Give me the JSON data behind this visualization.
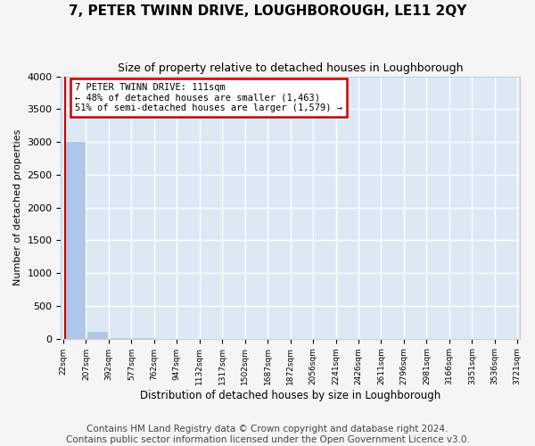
{
  "title": "7, PETER TWINN DRIVE, LOUGHBOROUGH, LE11 2QY",
  "subtitle": "Size of property relative to detached houses in Loughborough",
  "xlabel": "Distribution of detached houses by size in Loughborough",
  "ylabel": "Number of detached properties",
  "bar_color": "#aec6e8",
  "bar_edge_color": "#aec6e8",
  "background_color": "#dce9f5",
  "grid_color": "#ffffff",
  "annotation_line1": "7 PETER TWINN DRIVE: 111sqm",
  "annotation_line2": "← 48% of detached houses are smaller (1,463)",
  "annotation_line3": "51% of semi-detached houses are larger (1,579) →",
  "annotation_box_color": "#ffffff",
  "annotation_box_border": "#cc0000",
  "vline_color": "#cc0000",
  "bar_values": [
    3000,
    110,
    5,
    2,
    1,
    1,
    0,
    0,
    0,
    0,
    0,
    0,
    0,
    0,
    0,
    0,
    0,
    0,
    0,
    0
  ],
  "bin_labels": [
    "22sqm",
    "207sqm",
    "392sqm",
    "577sqm",
    "762sqm",
    "947sqm",
    "1132sqm",
    "1317sqm",
    "1502sqm",
    "1687sqm",
    "1872sqm",
    "2056sqm",
    "2241sqm",
    "2426sqm",
    "2611sqm",
    "2796sqm",
    "2981sqm",
    "3166sqm",
    "3351sqm",
    "3536sqm",
    "3721sqm"
  ],
  "ylim": [
    0,
    4000
  ],
  "yticks": [
    0,
    500,
    1000,
    1500,
    2000,
    2500,
    3000,
    3500,
    4000
  ],
  "footer_line1": "Contains HM Land Registry data © Crown copyright and database right 2024.",
  "footer_line2": "Contains public sector information licensed under the Open Government Licence v3.0.",
  "title_fontsize": 11,
  "subtitle_fontsize": 9,
  "footer_fontsize": 7.5
}
